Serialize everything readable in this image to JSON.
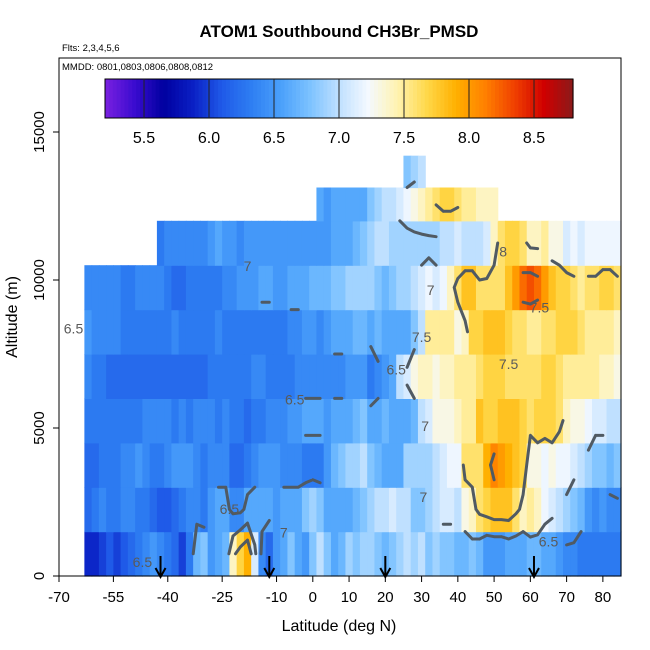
{
  "chart_data": {
    "type": "heatmap",
    "title": "ATOM1 Southbound CH3Br_PMSD",
    "notes": [
      "Flts: 2,3,4,5,6",
      "MMDD: 0801,0803,0806,0808,0812"
    ],
    "xlabel": "Latitude (deg N)",
    "ylabel": "Altitude (m)",
    "xlim": [
      -70,
      85
    ],
    "ylim": [
      0,
      17500
    ],
    "x_ticks": [
      -70,
      -55,
      -40,
      -25,
      -10,
      0,
      10,
      20,
      30,
      40,
      50,
      60,
      70,
      80
    ],
    "x_tick_labels": [
      "-70",
      "-55",
      "-40",
      "-25",
      "-10",
      "0",
      "10",
      "20",
      "30",
      "40",
      "50",
      "60",
      "70",
      "80"
    ],
    "y_ticks": [
      0,
      5000,
      10000,
      15000
    ],
    "y_tick_labels": [
      "0",
      "5000",
      "10000",
      "15000"
    ],
    "colorbar": {
      "range": [
        5.2,
        8.8
      ],
      "ticks": [
        5.5,
        6.0,
        6.5,
        7.0,
        7.5,
        8.0,
        8.5
      ],
      "tick_labels": [
        "5.5",
        "6.0",
        "6.5",
        "7.0",
        "7.5",
        "8.0",
        "8.5"
      ],
      "colors": [
        "#7a20e0",
        "#3b0cd0",
        "#0000a0",
        "#0a1fc4",
        "#1f5ae8",
        "#2e7ef2",
        "#4aa0fb",
        "#7cc2ff",
        "#bfe0ff",
        "#f4f9ff",
        "#fff3b0",
        "#ffd84a",
        "#ffb000",
        "#ff8000",
        "#f04000",
        "#d00000",
        "#8b1a1a"
      ]
    },
    "contour_levels": [
      6.5,
      7.0,
      7.5,
      8.0
    ],
    "contour_labels": [
      {
        "text": "7",
        "x": -18,
        "y": 10300
      },
      {
        "text": "6.5",
        "x": -66,
        "y": 8200
      },
      {
        "text": "7",
        "x": 32.5,
        "y": 9500
      },
      {
        "text": "7.5",
        "x": 30,
        "y": 7900
      },
      {
        "text": "6.5",
        "x": 23,
        "y": 6800
      },
      {
        "text": "6.5",
        "x": -5,
        "y": 5800
      },
      {
        "text": "7",
        "x": 31,
        "y": 4900
      },
      {
        "text": "8",
        "x": 52.5,
        "y": 10800
      },
      {
        "text": "7.5",
        "x": 62.5,
        "y": 8900
      },
      {
        "text": "7.5",
        "x": 54,
        "y": 7000
      },
      {
        "text": "6.5",
        "x": -23,
        "y": 2100
      },
      {
        "text": "7",
        "x": 30.5,
        "y": 2500
      },
      {
        "text": "7",
        "x": -8,
        "y": 1300
      },
      {
        "text": "6.5",
        "x": 65,
        "y": 1000
      },
      {
        "text": "6.5",
        "x": -47,
        "y": 300
      }
    ],
    "grid_rows": [
      {
        "alt": 750,
        "lat_start": -62,
        "values": [
          5.9,
          5.9,
          6.0,
          6.1,
          6.0,
          6.1,
          6.2,
          6.3,
          6.4,
          6.5,
          6.4,
          6.3,
          6.2,
          6.0,
          6.3,
          6.7,
          6.8,
          6.5,
          6.6,
          6.7,
          7.4,
          7.7,
          7.9,
          7.1,
          6.4,
          6.2,
          6.5,
          6.6,
          6.8,
          6.6,
          6.5,
          6.8,
          7.0,
          6.8,
          6.6,
          6.7,
          6.9,
          6.8,
          6.9,
          6.9,
          6.8,
          6.7,
          6.8,
          6.9,
          7.0,
          6.9,
          7.0,
          6.8,
          6.9,
          6.8,
          6.8,
          6.7,
          6.7,
          6.8,
          6.7,
          6.5,
          6.5,
          6.5,
          6.6,
          6.6,
          6.6,
          6.7,
          6.7,
          6.6,
          6.6,
          6.5,
          6.4,
          6.4,
          6.3,
          6.3,
          6.3,
          6.3,
          6.3,
          6.3
        ]
      },
      {
        "alt": 2250,
        "lat_start": -62,
        "values": [
          6.2,
          6.3,
          6.4,
          6.3,
          6.3,
          6.4,
          6.4,
          6.3,
          6.3,
          6.2,
          6.1,
          6.1,
          6.2,
          6.3,
          6.4,
          6.4,
          6.3,
          6.5,
          6.6,
          6.6,
          6.4,
          6.4,
          6.6,
          6.6,
          6.6,
          6.6,
          6.5,
          6.6,
          6.6,
          6.6,
          6.8,
          6.9,
          6.8,
          6.6,
          6.6,
          6.6,
          6.6,
          6.7,
          6.8,
          6.9,
          7.0,
          7.0,
          7.1,
          7.0,
          7.0,
          6.8,
          6.8,
          6.9,
          7.0,
          7.1,
          7.1,
          7.0,
          7.3,
          7.4,
          7.6,
          7.7,
          7.8,
          7.8,
          7.8,
          7.6,
          7.4,
          7.5,
          7.4,
          7.2,
          7.1,
          7.0,
          6.9,
          6.8,
          6.7,
          6.5,
          6.4,
          6.5,
          6.4,
          6.4
        ]
      },
      {
        "alt": 3750,
        "lat_start": -62,
        "values": [
          6.2,
          6.2,
          6.3,
          6.3,
          6.3,
          6.4,
          6.4,
          6.5,
          6.4,
          6.3,
          6.3,
          6.4,
          6.5,
          6.5,
          6.5,
          6.4,
          6.3,
          6.4,
          6.4,
          6.4,
          6.2,
          6.2,
          6.3,
          6.4,
          6.5,
          6.5,
          6.5,
          6.4,
          6.4,
          6.4,
          6.3,
          6.3,
          6.3,
          6.5,
          6.7,
          6.8,
          6.9,
          6.9,
          7.0,
          6.8,
          6.7,
          6.6,
          6.6,
          6.6,
          6.9,
          6.9,
          6.9,
          6.9,
          7.0,
          7.1,
          7.2,
          7.2,
          7.6,
          7.6,
          7.6,
          7.9,
          8.1,
          8.0,
          7.9,
          7.8,
          7.7,
          7.3,
          7.3,
          7.2,
          7.3,
          7.2,
          7.2,
          7.1,
          7.0,
          6.9,
          6.8,
          6.8,
          6.7,
          6.8
        ]
      },
      {
        "alt": 5250,
        "lat_start": -62,
        "values": [
          6.3,
          6.3,
          6.3,
          6.3,
          6.3,
          6.3,
          6.3,
          6.3,
          6.4,
          6.4,
          6.4,
          6.4,
          6.3,
          6.4,
          6.3,
          6.4,
          6.4,
          6.4,
          6.3,
          6.4,
          6.3,
          6.3,
          6.2,
          6.3,
          6.3,
          6.4,
          6.4,
          6.4,
          6.5,
          6.5,
          6.6,
          6.6,
          6.6,
          6.5,
          6.6,
          6.6,
          6.6,
          6.7,
          6.8,
          6.6,
          6.6,
          6.7,
          6.6,
          6.6,
          6.6,
          6.7,
          7.0,
          7.1,
          7.3,
          7.3,
          7.3,
          7.4,
          7.5,
          7.5,
          7.8,
          7.7,
          7.7,
          7.8,
          7.8,
          7.8,
          7.7,
          7.6,
          7.7,
          7.7,
          7.7,
          7.6,
          7.4,
          7.3,
          7.3,
          7.2,
          7.1,
          7.1,
          7.0,
          7.0
        ]
      },
      {
        "alt": 6750,
        "lat_start": -62,
        "values": [
          6.4,
          6.3,
          6.3,
          6.2,
          6.2,
          6.2,
          6.2,
          6.2,
          6.2,
          6.2,
          6.2,
          6.2,
          6.2,
          6.2,
          6.2,
          6.2,
          6.2,
          6.3,
          6.3,
          6.3,
          6.3,
          6.3,
          6.3,
          6.4,
          6.4,
          6.3,
          6.3,
          6.3,
          6.3,
          6.4,
          6.4,
          6.4,
          6.4,
          6.4,
          6.4,
          6.4,
          6.5,
          6.5,
          6.5,
          6.3,
          6.4,
          6.5,
          6.6,
          7.0,
          7.1,
          7.3,
          7.4,
          7.4,
          7.3,
          7.4,
          7.4,
          7.5,
          7.5,
          7.5,
          7.6,
          7.7,
          7.7,
          7.7,
          7.6,
          7.6,
          7.6,
          7.6,
          7.6,
          7.7,
          7.7,
          7.6,
          7.5,
          7.5,
          7.5,
          7.5,
          7.5,
          7.4,
          7.4,
          7.3
        ]
      },
      {
        "alt": 8250,
        "lat_start": -62,
        "values": [
          6.5,
          6.4,
          6.4,
          6.4,
          6.4,
          6.3,
          6.3,
          6.3,
          6.3,
          6.3,
          6.3,
          6.3,
          6.4,
          6.3,
          6.3,
          6.3,
          6.3,
          6.3,
          6.4,
          6.3,
          6.3,
          6.3,
          6.3,
          6.3,
          6.3,
          6.3,
          6.3,
          6.3,
          6.4,
          6.4,
          6.5,
          6.5,
          6.4,
          6.5,
          6.6,
          6.6,
          6.6,
          6.7,
          6.7,
          6.6,
          6.7,
          6.6,
          6.6,
          6.6,
          6.6,
          6.8,
          7.0,
          7.5,
          7.5,
          7.5,
          7.5,
          7.3,
          7.4,
          7.7,
          7.7,
          7.8,
          7.8,
          7.8,
          7.7,
          7.6,
          7.6,
          7.5,
          7.5,
          7.6,
          7.6,
          7.7,
          7.7,
          7.7,
          7.6,
          7.5,
          7.5,
          7.5,
          7.5,
          7.4
        ]
      },
      {
        "alt": 9750,
        "lat_start": -62,
        "values": [
          6.4,
          6.4,
          6.4,
          6.4,
          6.4,
          6.3,
          6.3,
          6.4,
          6.4,
          6.4,
          6.4,
          6.3,
          6.2,
          6.2,
          6.3,
          6.3,
          6.3,
          6.3,
          6.3,
          6.4,
          6.4,
          6.5,
          6.5,
          6.5,
          6.6,
          6.6,
          6.5,
          6.5,
          6.6,
          6.6,
          6.6,
          6.7,
          6.7,
          6.7,
          6.8,
          6.8,
          6.9,
          6.9,
          6.9,
          6.9,
          6.8,
          6.7,
          6.8,
          6.9,
          6.9,
          7.0,
          7.1,
          7.2,
          7.1,
          7.2,
          7.4,
          7.6,
          7.8,
          7.8,
          7.6,
          7.6,
          7.6,
          7.6,
          7.8,
          8.0,
          8.2,
          8.3,
          8.2,
          8.0,
          7.8,
          7.7,
          7.7,
          7.6,
          7.5,
          7.6,
          7.6,
          7.7,
          7.7,
          7.6
        ]
      },
      {
        "alt": 11250,
        "lat_start": -42,
        "values": [
          6.3,
          6.4,
          6.4,
          6.4,
          6.4,
          6.4,
          6.4,
          6.5,
          6.6,
          6.5,
          6.5,
          6.4,
          6.5,
          6.5,
          6.5,
          6.5,
          6.5,
          6.5,
          6.5,
          6.5,
          6.5,
          6.5,
          6.5,
          6.5,
          6.6,
          6.6,
          6.6,
          6.7,
          6.8,
          6.9,
          7.0,
          7.0,
          6.9,
          6.9,
          6.9,
          6.9,
          6.9,
          6.9,
          6.9,
          7.0,
          7.0,
          7.1,
          7.0,
          7.0,
          7.0,
          7.1,
          7.4,
          7.6,
          7.7,
          7.7,
          7.6,
          7.4,
          7.4,
          7.5,
          7.3,
          7.3,
          7.1,
          7.2,
          7.1,
          7.2,
          7.2,
          7.2,
          7.2,
          7.2
        ]
      },
      {
        "alt": 12750,
        "lat_start": 2,
        "values": [
          6.6,
          6.5,
          6.6,
          6.6,
          6.6,
          6.6,
          6.6,
          6.8,
          6.9,
          7.0,
          7.0,
          7.1,
          7.2,
          7.3,
          7.4,
          7.5,
          7.6,
          7.7,
          7.7,
          7.6,
          7.5,
          7.5,
          7.4,
          7.4,
          7.4
        ]
      },
      {
        "alt": 13500,
        "lat_start": 26,
        "values": [
          6.8,
          6.9,
          7.0
        ]
      }
    ],
    "arrows_lat": [
      -42,
      -12,
      20,
      61
    ]
  }
}
